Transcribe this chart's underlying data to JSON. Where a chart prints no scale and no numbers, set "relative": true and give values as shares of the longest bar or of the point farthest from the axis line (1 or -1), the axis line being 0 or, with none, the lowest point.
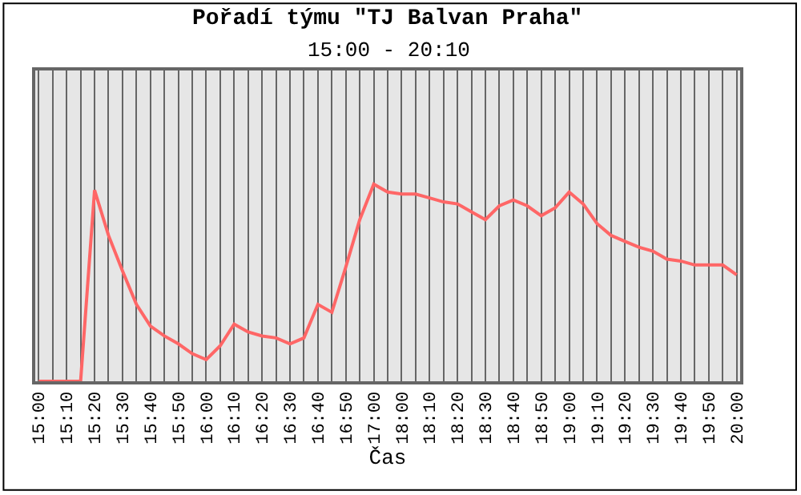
{
  "chart_data": {
    "type": "line",
    "title": "Pořadí týmu \"TJ Balvan Praha\"",
    "subtitle": "15:00 - 20:10",
    "xlabel": "Čas",
    "relative": true,
    "grid": "x",
    "marker": "none",
    "line_style": "solid",
    "categories": [
      "15:00",
      null,
      "15:10",
      null,
      "15:20",
      null,
      "15:30",
      null,
      "15:40",
      null,
      "15:50",
      null,
      "16:00",
      null,
      "16:10",
      null,
      "16:20",
      null,
      "16:30",
      null,
      "16:40",
      null,
      "16:50",
      null,
      "17:00",
      null,
      "18:00",
      null,
      "18:10",
      null,
      "18:20",
      null,
      "18:30",
      null,
      "18:40",
      null,
      "18:50",
      null,
      "19:00",
      null,
      "19:10",
      null,
      "19:20",
      null,
      "19:30",
      null,
      "19:40",
      null,
      "19:50",
      null,
      "20:00"
    ],
    "series": [
      {
        "color": "#ff6666",
        "values": [
          0,
          0,
          0,
          0,
          0.97,
          0.74,
          0.56,
          0.39,
          0.28,
          0.23,
          0.19,
          0.14,
          0.11,
          0.18,
          0.29,
          0.25,
          0.23,
          0.22,
          0.19,
          0.22,
          0.39,
          0.35,
          0.58,
          0.82,
          1.0,
          0.96,
          0.95,
          0.95,
          0.93,
          0.91,
          0.9,
          0.86,
          0.82,
          0.89,
          0.92,
          0.89,
          0.84,
          0.88,
          0.96,
          0.9,
          0.8,
          0.74,
          0.71,
          0.68,
          0.66,
          0.62,
          0.61,
          0.59,
          0.59,
          0.59,
          0.54
        ]
      }
    ]
  }
}
